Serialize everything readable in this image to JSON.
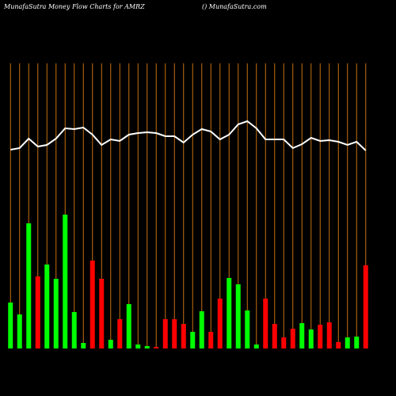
{
  "chart_data": {
    "type": "bar",
    "title": "MunafaSutra  Money Flow  Charts for AMRZ",
    "subtitle": "() MunafaSutra.com",
    "categories": [
      null,
      null,
      null,
      null,
      null,
      null,
      null,
      null,
      null,
      null,
      null,
      null,
      null,
      null,
      null,
      null,
      null,
      null,
      null,
      null,
      null,
      null,
      null,
      null,
      null,
      null,
      null,
      null,
      null,
      null,
      null,
      null,
      null,
      null,
      null,
      null,
      null,
      null,
      null,
      null
    ],
    "series": [
      {
        "colors": [
          "#00ff00",
          "#00ff00",
          "#00ff00",
          "#ff0000",
          "#00ff00",
          "#00ff00",
          "#00ff00",
          "#00ff00",
          "#00ff00",
          "#ff0000",
          "#ff0000",
          "#00ff00",
          "#ff0000",
          "#00ff00",
          "#00ff00",
          "#00ff00",
          "#ff0000",
          "#ff0000",
          "#ff0000",
          "#ff0000",
          "#00ff00",
          "#00ff00",
          "#ff0000",
          "#ff0000",
          "#00ff00",
          "#00ff00",
          "#00ff00",
          "#00ff00",
          "#ff0000",
          "#ff0000",
          "#ff0000",
          "#ff0000",
          "#00ff00",
          "#00ff00",
          "#ff0000",
          "#ff0000",
          "#ff0000",
          "#00ff00",
          "#00ff00",
          "#ff0000"
        ],
        "values": [
          58,
          43,
          158,
          91,
          106,
          88,
          169,
          46,
          7,
          111,
          88,
          11,
          37,
          56,
          5,
          3,
          2,
          37,
          37,
          31,
          21,
          47,
          21,
          63,
          89,
          81,
          48,
          5,
          63,
          31,
          14,
          25,
          32,
          24,
          30,
          33,
          8,
          14,
          15,
          105
        ]
      },
      {
        "color": "#ffffff",
        "values": [
          251,
          253,
          265,
          255,
          257,
          265,
          278,
          277,
          279,
          270,
          257,
          264,
          262,
          270,
          272,
          273,
          272,
          268,
          268,
          260,
          270,
          277,
          274,
          264,
          270,
          283,
          287,
          278,
          264,
          264,
          264,
          253,
          258,
          266,
          262,
          263,
          261,
          257,
          261,
          250
        ]
      }
    ],
    "ylim": [
      0,
      360
    ],
    "gridline_color": "#c87010"
  }
}
